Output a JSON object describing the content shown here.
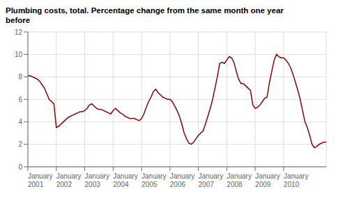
{
  "chart_data": {
    "type": "line",
    "title": "Plumbing costs, total. Percentage change from the same month one year\nbefore",
    "color": "#8B0000",
    "grid": true,
    "ylim": [
      0,
      12
    ],
    "yticks": [
      0,
      2,
      4,
      6,
      8,
      10,
      12
    ],
    "categories": [
      "January\n2001",
      null,
      null,
      null,
      null,
      null,
      null,
      null,
      null,
      null,
      null,
      null,
      "January\n2002",
      null,
      null,
      null,
      null,
      null,
      null,
      null,
      null,
      null,
      null,
      null,
      "January\n2003",
      null,
      null,
      null,
      null,
      null,
      null,
      null,
      null,
      null,
      null,
      null,
      "January\n2004",
      null,
      null,
      null,
      null,
      null,
      null,
      null,
      null,
      null,
      null,
      null,
      "January\n2005",
      null,
      null,
      null,
      null,
      null,
      null,
      null,
      null,
      null,
      null,
      null,
      "January\n2006",
      null,
      null,
      null,
      null,
      null,
      null,
      null,
      null,
      null,
      null,
      null,
      "January\n2007",
      null,
      null,
      null,
      null,
      null,
      null,
      null,
      null,
      null,
      null,
      null,
      "January\n2008",
      null,
      null,
      null,
      null,
      null,
      null,
      null,
      null,
      null,
      null,
      null,
      "January\n2009",
      null,
      null,
      null,
      null,
      null,
      null,
      null,
      null,
      null,
      null,
      null,
      "January\n2010",
      null,
      null,
      null,
      null,
      null,
      null,
      null,
      null,
      null,
      null,
      null,
      null,
      null,
      null,
      null,
      null,
      null,
      null
    ],
    "values": [
      8.1,
      8.1,
      8.0,
      7.9,
      7.8,
      7.6,
      7.3,
      7.0,
      6.5,
      6.0,
      5.8,
      5.6,
      3.5,
      3.6,
      3.8,
      4.0,
      4.2,
      4.4,
      4.5,
      4.6,
      4.7,
      4.8,
      4.9,
      4.9,
      5.0,
      5.2,
      5.5,
      5.6,
      5.4,
      5.2,
      5.1,
      5.1,
      5.0,
      4.9,
      4.8,
      4.7,
      5.0,
      5.2,
      5.0,
      4.8,
      4.7,
      4.5,
      4.4,
      4.3,
      4.3,
      4.3,
      4.2,
      4.1,
      4.3,
      4.7,
      5.3,
      5.8,
      6.2,
      6.7,
      6.9,
      6.6,
      6.4,
      6.2,
      6.1,
      6.0,
      6.0,
      5.8,
      5.4,
      5.0,
      4.5,
      3.8,
      3.0,
      2.5,
      2.1,
      2.0,
      2.2,
      2.5,
      2.8,
      3.0,
      3.2,
      3.8,
      4.5,
      5.2,
      6.0,
      7.0,
      8.0,
      9.2,
      9.3,
      9.2,
      9.5,
      9.8,
      9.7,
      9.3,
      8.5,
      7.8,
      7.4,
      7.4,
      7.2,
      7.0,
      6.8,
      5.5,
      5.2,
      5.3,
      5.5,
      5.8,
      6.1,
      6.2,
      7.5,
      8.5,
      9.5,
      10.0,
      9.8,
      9.7,
      9.7,
      9.5,
      9.2,
      8.8,
      8.2,
      7.5,
      6.8,
      6.0,
      5.0,
      4.0,
      3.5,
      2.8,
      2.0,
      1.7,
      1.8,
      2.0,
      2.1,
      2.2,
      2.2
    ]
  }
}
